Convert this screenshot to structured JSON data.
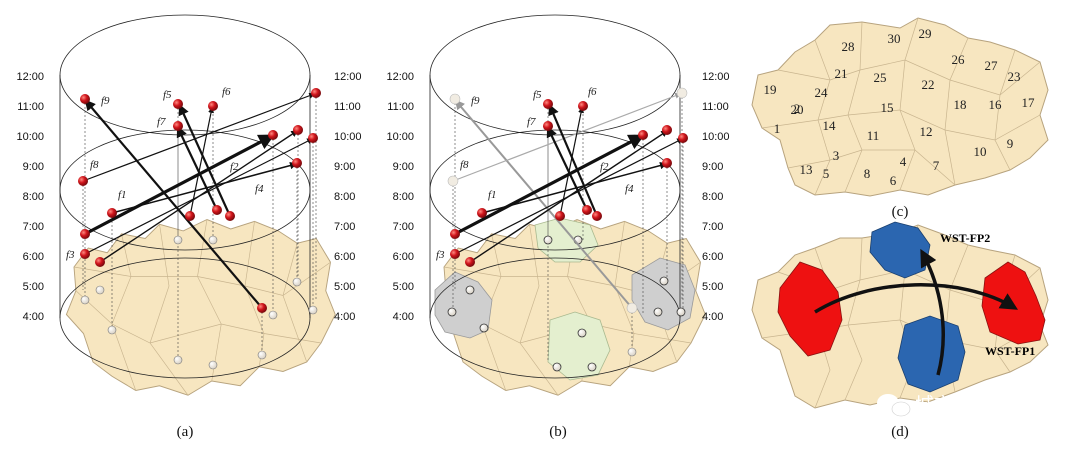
{
  "time_labels": [
    "12:00",
    "11:00",
    "10:00",
    "9:00",
    "8:00",
    "7:00",
    "6:00",
    "5:00",
    "4:00"
  ],
  "flow_labels": [
    "f1",
    "f2",
    "f3",
    "f4",
    "f5",
    "f6",
    "f7",
    "f8",
    "f9"
  ],
  "captions": {
    "a": "(a)",
    "b": "(b)",
    "c": "(c)",
    "d": "(d)"
  },
  "zone_numbers": [
    "1",
    "2",
    "3",
    "4",
    "5",
    "6",
    "7",
    "8",
    "9",
    "10",
    "11",
    "12",
    "13",
    "14",
    "15",
    "16",
    "17",
    "18",
    "19",
    "20",
    "21",
    "22",
    "23",
    "24",
    "25",
    "26",
    "27",
    "28",
    "29",
    "30"
  ],
  "flow_tags": {
    "fp1": "WST-FP1",
    "fp2": "WST-FP2"
  },
  "watermark": "城市数据派",
  "colors": {
    "land": "#f7e6c0",
    "node": "#c8151b",
    "red_zone": "#ee1111",
    "blue_zone": "#2b66b0",
    "gray_zone": "#cfcfcf",
    "green_zone": "#e4efcf"
  }
}
